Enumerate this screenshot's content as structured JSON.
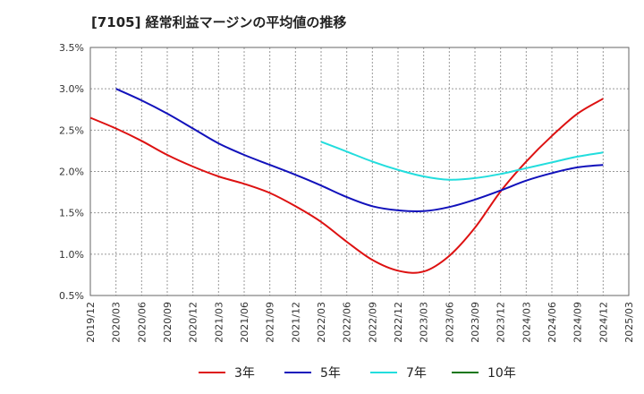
{
  "chart_data": {
    "type": "line",
    "title": "[7105]  経常利益マージンの平均値の推移",
    "y_ticks": [
      "3.5%",
      "3.0%",
      "2.5%",
      "2.0%",
      "1.5%",
      "1.0%",
      "0.5%"
    ],
    "ylim": [
      0.5,
      3.5
    ],
    "x_ticks": [
      "2019/12",
      "2020/03",
      "2020/06",
      "2020/09",
      "2020/12",
      "2021/03",
      "2021/06",
      "2021/09",
      "2021/12",
      "2022/03",
      "2022/06",
      "2022/09",
      "2022/12",
      "2023/03",
      "2023/06",
      "2023/09",
      "2023/12",
      "2024/03",
      "2024/06",
      "2024/09",
      "2024/12",
      "2025/03"
    ],
    "grid": true,
    "legend_position": "bottom",
    "series": [
      {
        "name": "3年",
        "color": "#dd1111",
        "points": [
          [
            "2019/12",
            2.65
          ],
          [
            "2020/03",
            2.52
          ],
          [
            "2020/06",
            2.37
          ],
          [
            "2020/09",
            2.2
          ],
          [
            "2020/12",
            2.06
          ],
          [
            "2021/03",
            1.94
          ],
          [
            "2021/06",
            1.85
          ],
          [
            "2021/09",
            1.74
          ],
          [
            "2021/12",
            1.58
          ],
          [
            "2022/03",
            1.39
          ],
          [
            "2022/06",
            1.15
          ],
          [
            "2022/09",
            0.93
          ],
          [
            "2022/12",
            0.8
          ],
          [
            "2023/03",
            0.79
          ],
          [
            "2023/06",
            0.98
          ],
          [
            "2023/09",
            1.32
          ],
          [
            "2023/12",
            1.76
          ],
          [
            "2024/03",
            2.12
          ],
          [
            "2024/06",
            2.43
          ],
          [
            "2024/09",
            2.7
          ],
          [
            "2024/12",
            2.88
          ]
        ]
      },
      {
        "name": "5年",
        "color": "#1111bb",
        "points": [
          [
            "2020/03",
            3.0
          ],
          [
            "2020/06",
            2.86
          ],
          [
            "2020/09",
            2.7
          ],
          [
            "2020/12",
            2.52
          ],
          [
            "2021/03",
            2.34
          ],
          [
            "2021/06",
            2.2
          ],
          [
            "2021/09",
            2.08
          ],
          [
            "2021/12",
            1.96
          ],
          [
            "2022/03",
            1.83
          ],
          [
            "2022/06",
            1.69
          ],
          [
            "2022/09",
            1.58
          ],
          [
            "2022/12",
            1.53
          ],
          [
            "2023/03",
            1.52
          ],
          [
            "2023/06",
            1.57
          ],
          [
            "2023/09",
            1.66
          ],
          [
            "2023/12",
            1.77
          ],
          [
            "2024/03",
            1.89
          ],
          [
            "2024/06",
            1.98
          ],
          [
            "2024/09",
            2.05
          ],
          [
            "2024/12",
            2.08
          ]
        ]
      },
      {
        "name": "7年",
        "color": "#22dddd",
        "points": [
          [
            "2022/03",
            2.36
          ],
          [
            "2022/06",
            2.24
          ],
          [
            "2022/09",
            2.12
          ],
          [
            "2022/12",
            2.02
          ],
          [
            "2023/03",
            1.94
          ],
          [
            "2023/06",
            1.9
          ],
          [
            "2023/09",
            1.92
          ],
          [
            "2023/12",
            1.97
          ],
          [
            "2024/03",
            2.04
          ],
          [
            "2024/06",
            2.11
          ],
          [
            "2024/09",
            2.18
          ],
          [
            "2024/12",
            2.23
          ]
        ]
      },
      {
        "name": "10年",
        "color": "#117711",
        "points": []
      }
    ]
  }
}
